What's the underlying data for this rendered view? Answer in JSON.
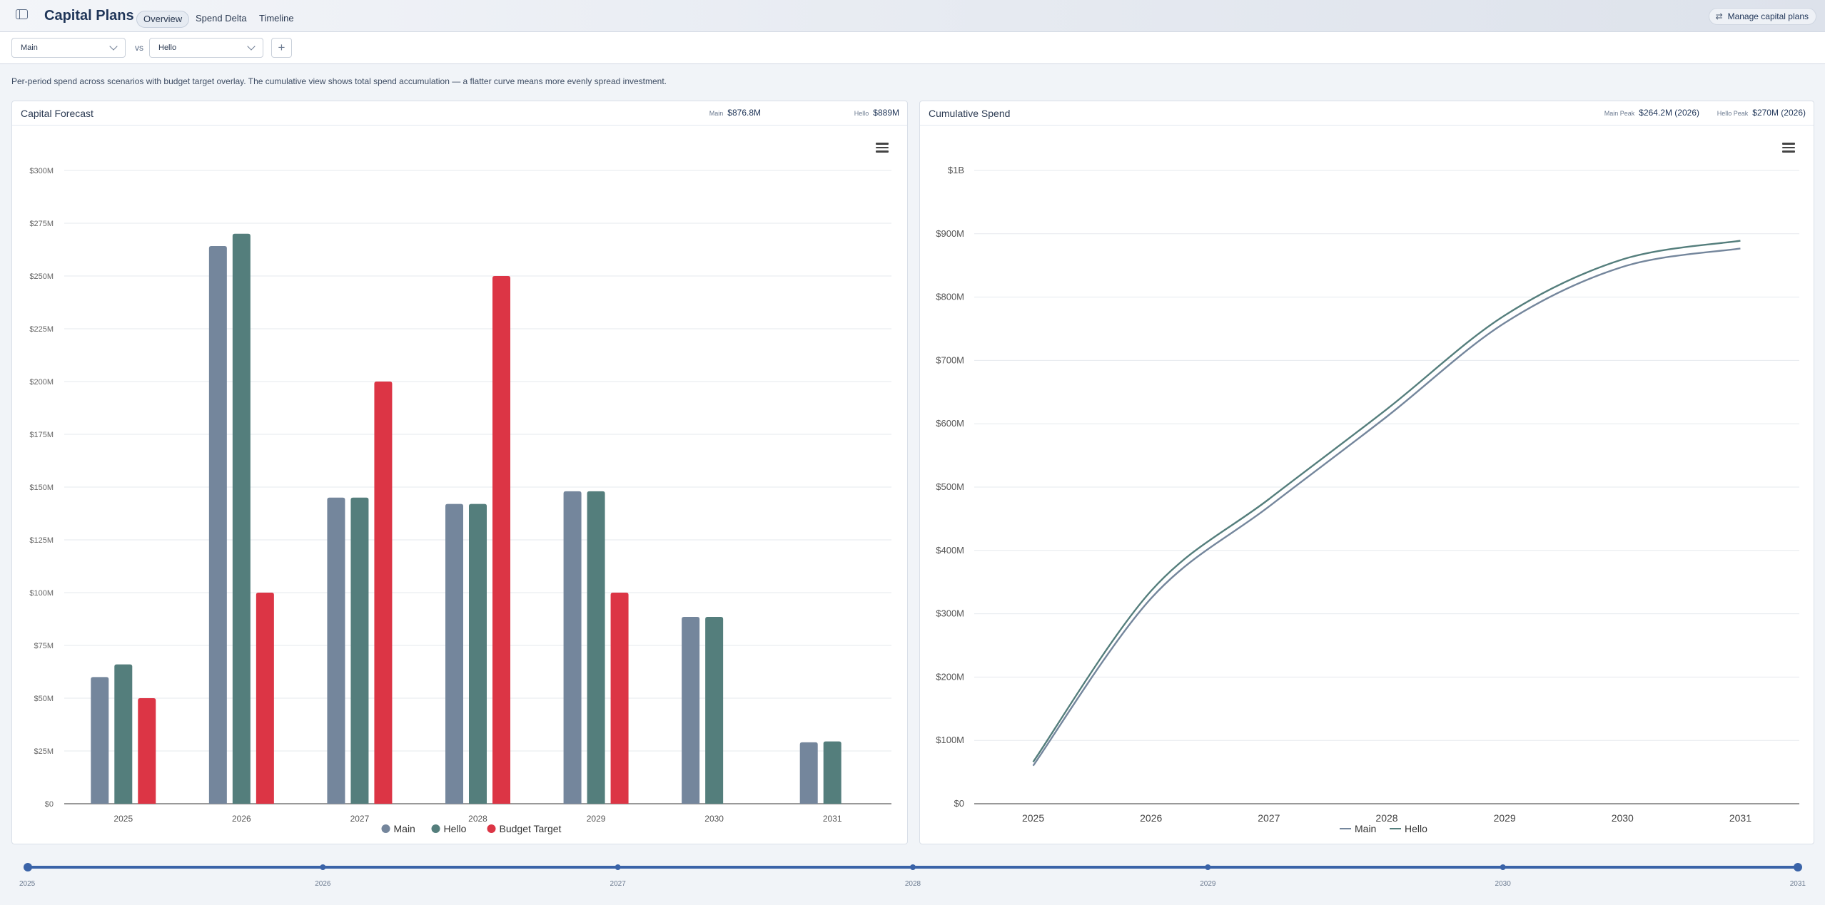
{
  "header": {
    "title": "Capital Plans",
    "tabs": [
      {
        "label": "Overview",
        "active": true
      },
      {
        "label": "Spend Delta",
        "active": false
      },
      {
        "label": "Timeline",
        "active": false
      }
    ],
    "manage_label": "Manage capital plans",
    "manage_icon": "swap-arrows-icon"
  },
  "filters": {
    "scenario_a": "Main",
    "vs_label": "vs",
    "scenario_b": "Hello",
    "add_label": "+"
  },
  "description": "Per-period spend across scenarios with budget target overlay. The cumulative view shows total spend accumulation — a flatter curve means more evenly spread investment.",
  "colors": {
    "main": "#74869c",
    "hello": "#547e7c",
    "budget": "#dc3545",
    "accent": "#3a63a8"
  },
  "forecast_panel": {
    "title": "Capital Forecast",
    "stats": [
      {
        "label": "Main",
        "value": "$876.8M"
      },
      {
        "label": "Hello",
        "value": "$889M"
      }
    ]
  },
  "cumulative_panel": {
    "title": "Cumulative Spend",
    "stats": [
      {
        "label": "Main Peak",
        "value": "$264.2M (2026)"
      },
      {
        "label": "Hello Peak",
        "value": "$270M (2026)"
      }
    ]
  },
  "chart_data": [
    {
      "type": "bar",
      "title": "Capital Forecast",
      "categories": [
        "2025",
        "2026",
        "2027",
        "2028",
        "2029",
        "2030",
        "2031"
      ],
      "series": [
        {
          "name": "Main",
          "values": [
            60,
            264.2,
            145,
            142,
            148,
            88.5,
            29.1
          ]
        },
        {
          "name": "Hello",
          "values": [
            66,
            270,
            145,
            142,
            148,
            88.5,
            29.5
          ]
        },
        {
          "name": "Budget Target",
          "values": [
            50,
            100,
            200,
            250,
            100,
            null,
            null
          ]
        }
      ],
      "ylim": [
        0,
        300
      ],
      "yticks": [
        "$0",
        "$25M",
        "$50M",
        "$75M",
        "$100M",
        "$125M",
        "$150M",
        "$175M",
        "$200M",
        "$225M",
        "$250M",
        "$275M",
        "$300M"
      ],
      "grid": true,
      "legend": "bottom-center"
    },
    {
      "type": "line",
      "title": "Cumulative Spend",
      "x": [
        "2025",
        "2026",
        "2027",
        "2028",
        "2029",
        "2030",
        "2031"
      ],
      "series": [
        {
          "name": "Main",
          "values": [
            60,
            324.2,
            469.2,
            611.2,
            759.2,
            847.7,
            876.8
          ]
        },
        {
          "name": "Hello",
          "values": [
            66,
            336,
            481,
            623,
            771,
            859.5,
            889
          ]
        }
      ],
      "ylim": [
        0,
        1000
      ],
      "yticks": [
        "$0",
        "$100M",
        "$200M",
        "$300M",
        "$400M",
        "$500M",
        "$600M",
        "$700M",
        "$800M",
        "$900M",
        "$1B"
      ],
      "grid": true,
      "legend": "bottom-center"
    }
  ],
  "range_slider": {
    "labels": [
      "2025",
      "2026",
      "2027",
      "2028",
      "2029",
      "2030",
      "2031"
    ],
    "start": "2025",
    "end": "2031"
  }
}
